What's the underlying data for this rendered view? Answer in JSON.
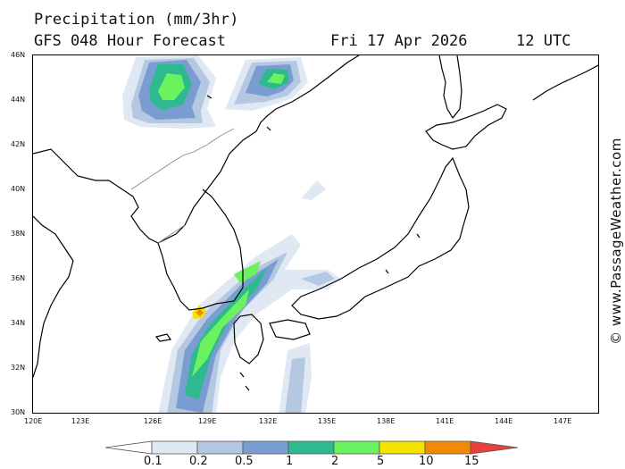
{
  "header": {
    "title": "Precipitation (mm/3hr)",
    "model": "GFS 048 Hour Forecast",
    "date": "Fri 17 Apr 2026",
    "time": "12 UTC"
  },
  "map": {
    "lat_labels": [
      "46N",
      "44N",
      "42N",
      "40N",
      "38N",
      "36N",
      "34N",
      "32N",
      "30N"
    ],
    "lon_labels": [
      "120E",
      "123E",
      "126E",
      "129E",
      "132E",
      "135E",
      "138E",
      "141E",
      "144E",
      "147E"
    ],
    "precip_colors": {
      "c01": "#dfe8f3",
      "c02": "#b5c8e2",
      "c05": "#7a9dd1",
      "c1": "#2fb98f",
      "c2": "#6cf25e",
      "c5": "#f3e300",
      "c10": "#f08a00"
    }
  },
  "colorbar": {
    "labels": [
      "0.1",
      "0.2",
      "0.5",
      "1",
      "2",
      "5",
      "10",
      "15"
    ],
    "colors": [
      "#ffffff",
      "#dfe8f3",
      "#b5c8e2",
      "#7a9dd1",
      "#2fb98f",
      "#6cf25e",
      "#f3e300",
      "#f08a00",
      "#e64040"
    ]
  },
  "credit": "© www.PassageWeather.com"
}
